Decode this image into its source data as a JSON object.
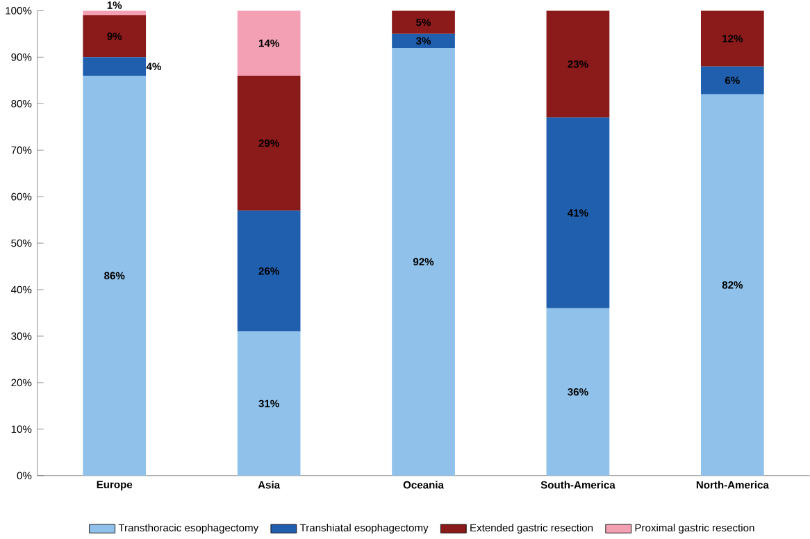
{
  "chart_data": {
    "type": "bar",
    "stacked": true,
    "categories": [
      "Europe",
      "Asia",
      "Oceania",
      "South-America",
      "North-America"
    ],
    "series": [
      {
        "name": "Transthoracic esophagectomy",
        "color": "#8fc1ea",
        "values": [
          86,
          31,
          92,
          36,
          82
        ],
        "value_labels": [
          "86%",
          "31%",
          "92%",
          "36%",
          "82%"
        ]
      },
      {
        "name": "Transhiatal esophagectomy",
        "color": "#1f5fad",
        "values": [
          4,
          26,
          3,
          41,
          6
        ],
        "value_labels": [
          "4%",
          "26%",
          "3%",
          "41%",
          "6%"
        ]
      },
      {
        "name": "Extended gastric resection",
        "color": "#8b1a1a",
        "values": [
          9,
          29,
          5,
          23,
          12
        ],
        "value_labels": [
          "9%",
          "29%",
          "5%",
          "23%",
          "12%"
        ]
      },
      {
        "name": "Proximal gastric resection",
        "color": "#f4a0b4",
        "values": [
          1,
          14,
          null,
          null,
          null
        ],
        "value_labels": [
          "1%",
          "14%",
          null,
          null,
          null
        ]
      }
    ],
    "ylim": [
      0,
      100
    ],
    "yticks": [
      {
        "value": 0,
        "label": "0%"
      },
      {
        "value": 10,
        "label": "10%"
      },
      {
        "value": 20,
        "label": "20%"
      },
      {
        "value": 30,
        "label": "30%"
      },
      {
        "value": 40,
        "label": "40%"
      },
      {
        "value": 50,
        "label": "50%"
      },
      {
        "value": 60,
        "label": "60%"
      },
      {
        "value": 70,
        "label": "70%"
      },
      {
        "value": 80,
        "label": "80%"
      },
      {
        "value": 90,
        "label": "90%"
      },
      {
        "value": 100,
        "label": "100%"
      }
    ],
    "grid": false,
    "legend": "bottom"
  }
}
